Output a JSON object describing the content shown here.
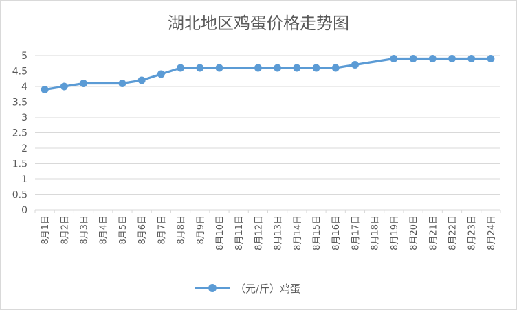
{
  "chart_data": {
    "type": "line",
    "title": "湖北地区鸡蛋价格走势图",
    "categories": [
      "8月1日",
      "8月2日",
      "8月3日",
      "8月4日",
      "8月5日",
      "8月6日",
      "8月7日",
      "8月8日",
      "8月9日",
      "8月10日",
      "8月11日",
      "8月12日",
      "8月13日",
      "8月14日",
      "8月15日",
      "8月16日",
      "8月17日",
      "8月18日",
      "8月19日",
      "8月20日",
      "8月21日",
      "8月22日",
      "8月23日",
      "8月24日"
    ],
    "series": [
      {
        "name": "（元/斤）鸡蛋",
        "color": "#5b9bd5",
        "values": [
          3.9,
          4.0,
          4.1,
          null,
          4.1,
          4.2,
          4.4,
          4.6,
          4.6,
          4.6,
          null,
          4.6,
          4.6,
          4.6,
          4.6,
          4.6,
          4.7,
          null,
          4.9,
          4.9,
          4.9,
          4.9,
          4.9,
          4.9
        ]
      }
    ],
    "yticks": [
      "0",
      "0.5",
      "1",
      "1.5",
      "2",
      "2.5",
      "3",
      "3.5",
      "4",
      "4.5",
      "5"
    ],
    "ylim": [
      0,
      5
    ],
    "grid": true,
    "legend_position": "bottom",
    "gap_handling": "connect"
  }
}
